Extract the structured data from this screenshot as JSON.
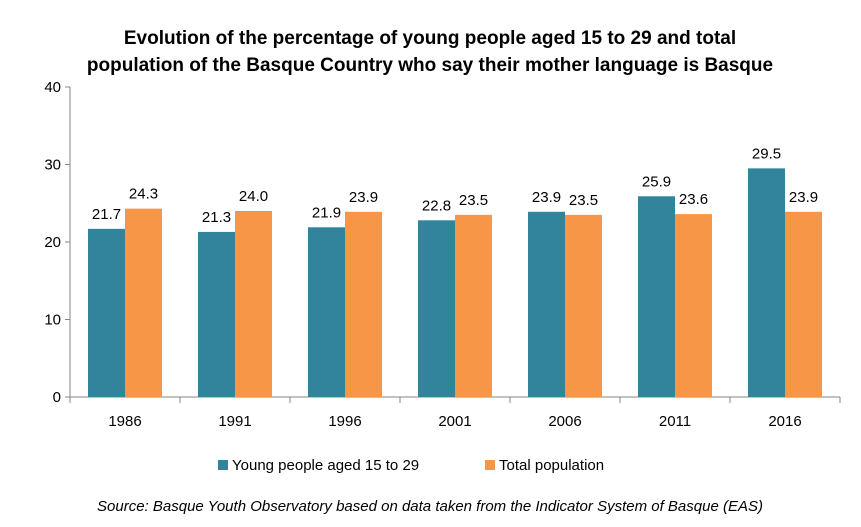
{
  "chart_data": {
    "type": "bar",
    "title_lines": [
      "Evolution of the percentage of young people aged 15 to 29 and total",
      "population of the Basque Country who say their mother language is Basque"
    ],
    "categories": [
      "1986",
      "1991",
      "1996",
      "2001",
      "2006",
      "2011",
      "2016"
    ],
    "series": [
      {
        "name": "Young people aged 15 to 29",
        "color": "#31849B",
        "values": [
          21.7,
          21.3,
          21.9,
          22.8,
          23.9,
          25.9,
          29.5
        ],
        "labels": [
          "21.7",
          "21.3",
          "21.9",
          "22.8",
          "23.9",
          "25.9",
          "29.5"
        ]
      },
      {
        "name": "Total population",
        "color": "#F79646",
        "values": [
          24.3,
          24.0,
          23.9,
          23.5,
          23.5,
          23.6,
          23.9
        ],
        "labels": [
          "24.3",
          "24.0",
          "23.9",
          "23.5",
          "23.5",
          "23.6",
          "23.9"
        ]
      }
    ],
    "ylim": [
      0,
      40
    ],
    "yticks": [
      0,
      10,
      20,
      30,
      40
    ],
    "grid": false,
    "legend_position": "bottom",
    "xlabel": "",
    "ylabel": "",
    "source": "Source: Basque Youth Observatory based on data taken from the Indicator System of Basque (EAS)"
  }
}
